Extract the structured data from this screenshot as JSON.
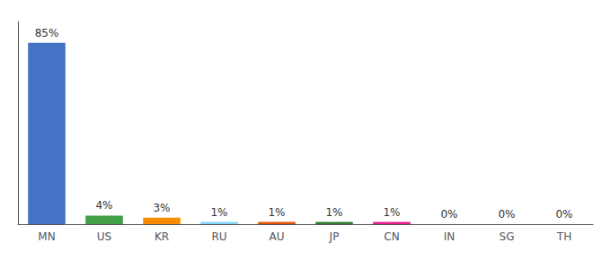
{
  "chart_data": {
    "type": "bar",
    "categories": [
      "MN",
      "US",
      "KR",
      "RU",
      "AU",
      "JP",
      "CN",
      "IN",
      "SG",
      "TH"
    ],
    "values": [
      85,
      4,
      3,
      1,
      1,
      1,
      1,
      0,
      0,
      0
    ],
    "value_labels": [
      "85%",
      "4%",
      "3%",
      "1%",
      "1%",
      "1%",
      "1%",
      "0%",
      "0%",
      "0%"
    ],
    "colors": [
      "#4472c4",
      "#43a047",
      "#fb8c00",
      "#81d4fa",
      "#e65100",
      "#2e7d32",
      "#e91e8c",
      "#b0bec5",
      "#b0bec5",
      "#b0bec5"
    ],
    "ylim": [
      0,
      95
    ],
    "data_labels": true,
    "tick_labels": "x",
    "grid": false
  }
}
